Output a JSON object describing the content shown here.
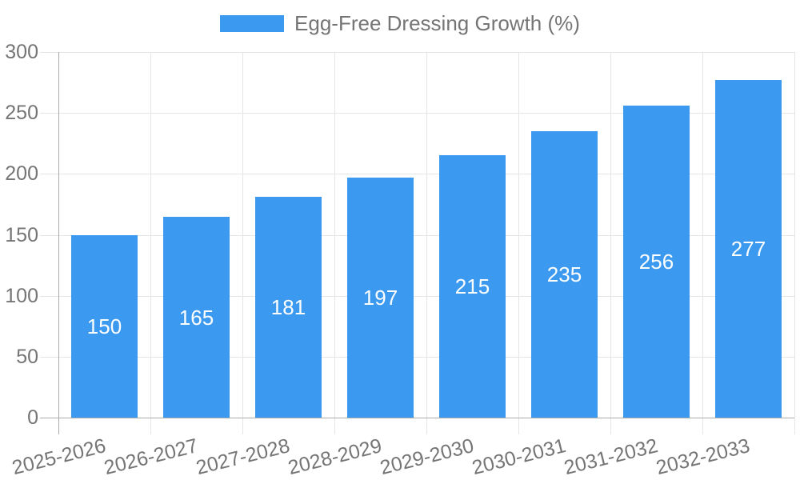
{
  "chart_data": {
    "type": "bar",
    "title": "Egg-Free Dressing Growth (%)",
    "legend_label": "Egg-Free Dressing Growth (%)",
    "categories": [
      "2025-2026",
      "2026-2027",
      "2027-2028",
      "2028-2029",
      "2029-2030",
      "2030-2031",
      "2031-2032",
      "2032-2033"
    ],
    "values": [
      150,
      165,
      181,
      197,
      215,
      235,
      256,
      277
    ],
    "yticks": [
      0,
      50,
      100,
      150,
      200,
      250,
      300
    ],
    "ylim": [
      0,
      300
    ],
    "xlabel": "",
    "ylabel": "",
    "grid": "on",
    "legend_position": "top",
    "value_labels": "inside-center"
  },
  "colors": {
    "bar": "#3B99F0",
    "grid": "#E5E5E5",
    "axis": "#ABABAB",
    "tick_text": "#757575",
    "legend_text": "#757575",
    "value_label_text": "#FFFFFF",
    "background": "#FFFFFF"
  }
}
